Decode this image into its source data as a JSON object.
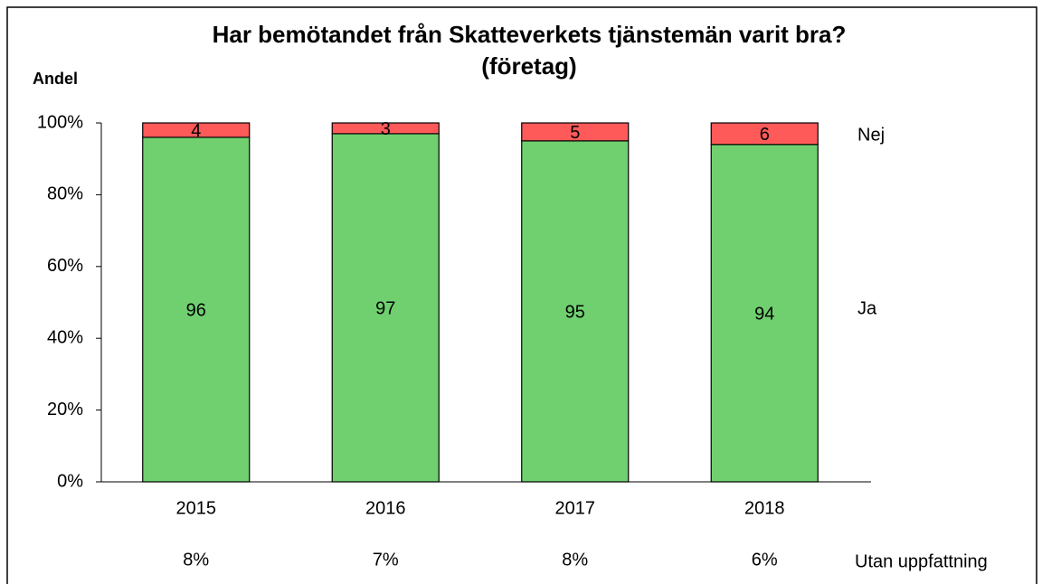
{
  "chart_data": {
    "type": "stacked_bar",
    "title": "Har bemötandet från Skatteverkets tjänstemän varit bra?",
    "subtitle": "(företag)",
    "y_label": "Andel",
    "categories": [
      "2015",
      "2016",
      "2017",
      "2018"
    ],
    "series": [
      {
        "name": "Ja",
        "color": "#70d070",
        "values": [
          96,
          97,
          95,
          94
        ]
      },
      {
        "name": "Nej",
        "color": "#ff5a5a",
        "values": [
          4,
          3,
          5,
          6
        ]
      }
    ],
    "ylim": [
      0,
      100
    ],
    "yticks": [
      {
        "value": 0,
        "label": "0%"
      },
      {
        "value": 20,
        "label": "20%"
      },
      {
        "value": 40,
        "label": "40%"
      },
      {
        "value": 60,
        "label": "60%"
      },
      {
        "value": 80,
        "label": "80%"
      },
      {
        "value": 100,
        "label": "100%"
      }
    ],
    "no_opinion": {
      "label": "Utan uppfattning",
      "values": [
        8,
        7,
        8,
        6
      ],
      "value_labels": [
        "8%",
        "7%",
        "8%",
        "6%"
      ]
    }
  }
}
